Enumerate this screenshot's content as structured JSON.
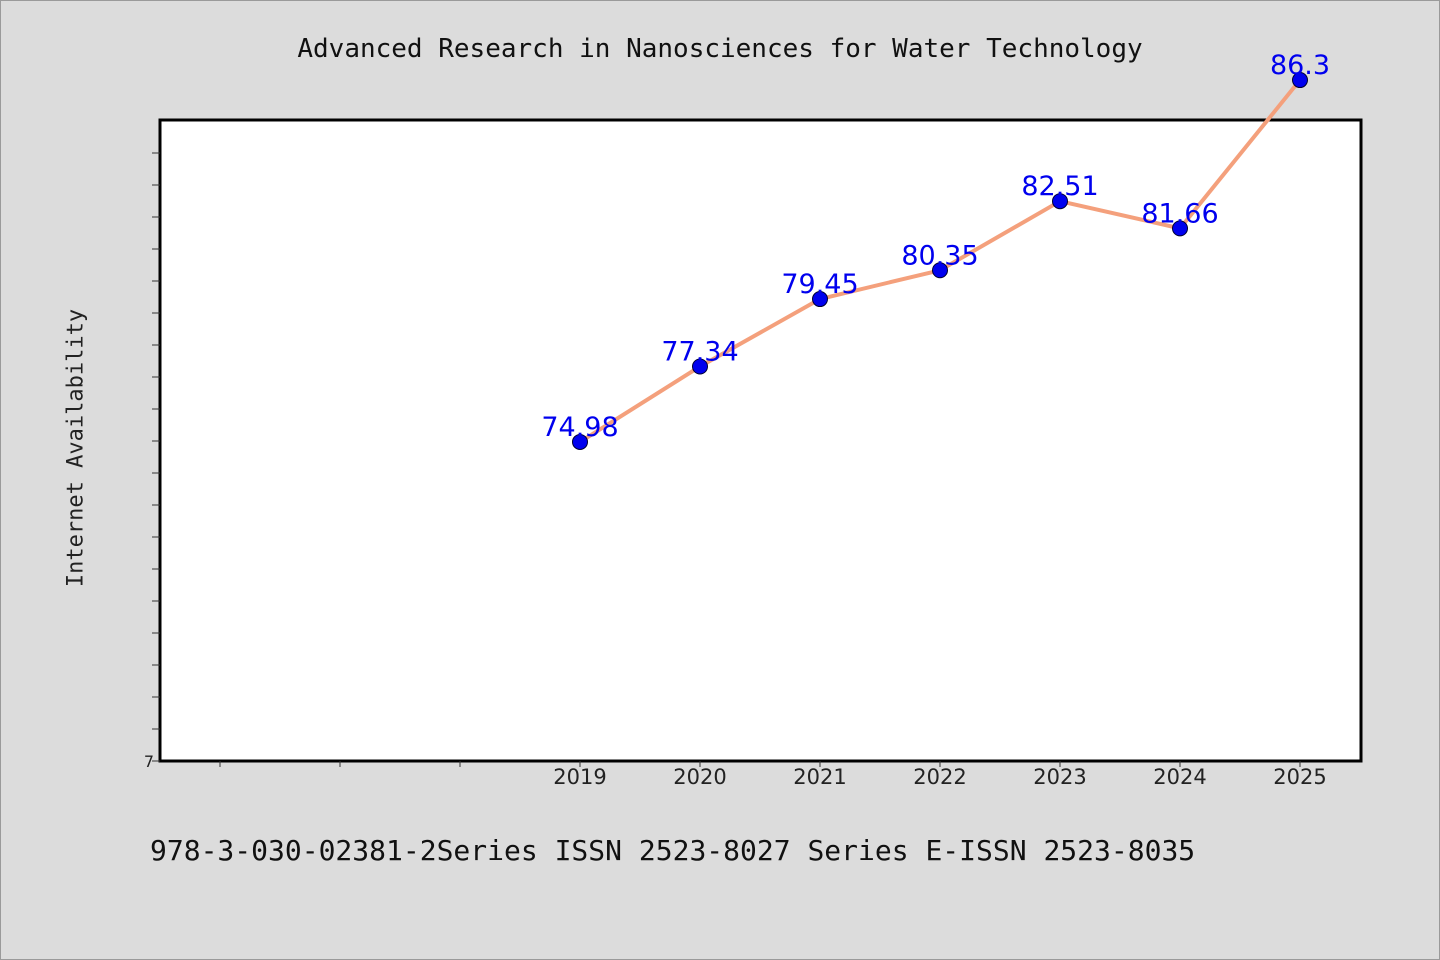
{
  "chart_data": {
    "type": "line",
    "title": "Advanced Research in Nanosciences for Water Technology",
    "xlabel": "",
    "ylabel": "Internet Availability",
    "categories": [
      "2019",
      "2020",
      "2021",
      "2022",
      "2023",
      "2024",
      "2025"
    ],
    "series": [
      {
        "values": [
          74.98,
          77.34,
          79.45,
          80.35,
          82.51,
          81.66,
          86.3
        ]
      }
    ],
    "data_labels": [
      "74.98",
      "77.34",
      "79.45",
      "80.35",
      "82.51",
      "81.66",
      "86.3"
    ],
    "y_tick_labels": [
      "7"
    ],
    "ylim": [
      65,
      85.05
    ],
    "grid": false,
    "legend": "none",
    "colors": {
      "line": "#f4a07c",
      "marker": "#0000ee",
      "label": "#0000ee",
      "plot_bg": "#ffffff",
      "page_bg": "#dcdcdc"
    }
  },
  "footer": "978-3-030-02381-2Series ISSN 2523-8027 Series E-ISSN 2523-8035"
}
